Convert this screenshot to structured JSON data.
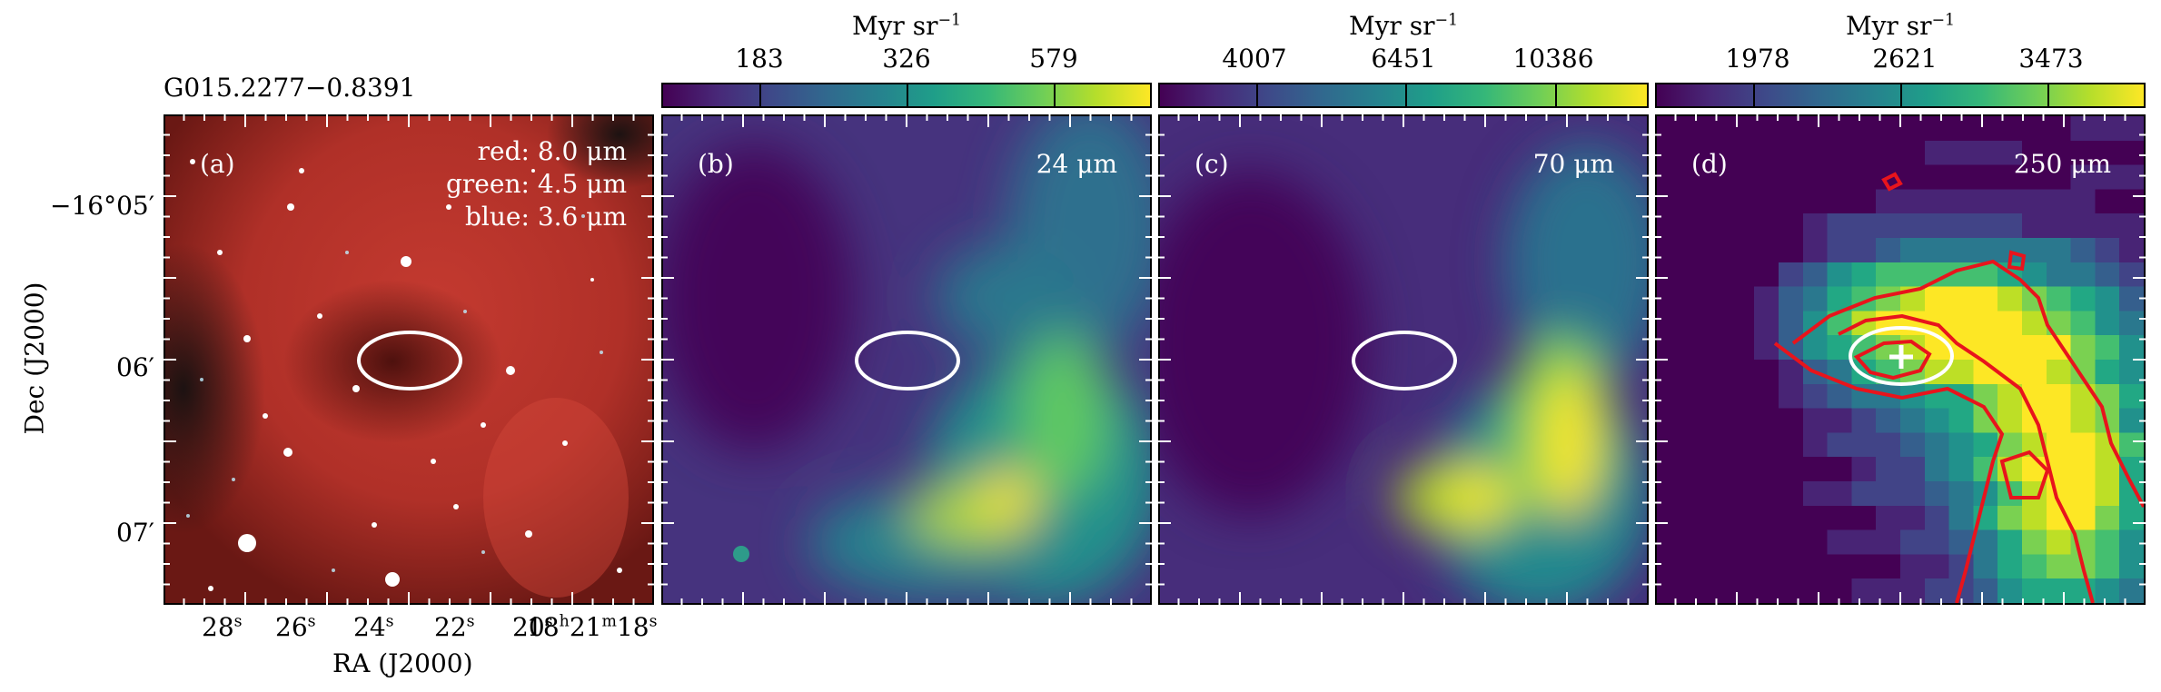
{
  "source_name": "G015.2277−0.8391",
  "panels": [
    {
      "letter": "(a)",
      "bands": [
        "red: 8.0 μm",
        "green: 4.5 μm",
        "blue: 3.6 μm"
      ]
    },
    {
      "letter": "(b)",
      "band": "24 μm",
      "colorbar": {
        "unit": "Myr sr",
        "unit_exp": "−1",
        "ticks": [
          "183",
          "326",
          "579"
        ]
      }
    },
    {
      "letter": "(c)",
      "band": "70 μm",
      "colorbar": {
        "unit": "Myr sr",
        "unit_exp": "−1",
        "ticks": [
          "4007",
          "6451",
          "10386"
        ]
      }
    },
    {
      "letter": "(d)",
      "band": "250 μm",
      "colorbar": {
        "unit": "Myr sr",
        "unit_exp": "−1",
        "ticks": [
          "1978",
          "2621",
          "3473"
        ]
      }
    }
  ],
  "axes": {
    "ylabel": "Dec (J2000)",
    "xlabel": "RA (J2000)",
    "yticks": [
      "−16°05′",
      "06′",
      "07′"
    ],
    "xticks": [
      {
        "v": "28",
        "u": "s"
      },
      {
        "v": "26",
        "u": "s"
      },
      {
        "v": "24",
        "u": "s"
      },
      {
        "v": "22",
        "u": "s"
      },
      {
        "v": "20",
        "u": "s"
      },
      {
        "v": "18",
        "u": "h"
      },
      {
        "v": "21",
        "u": "m"
      },
      {
        "v": "18",
        "u": "s"
      }
    ]
  },
  "colors": {
    "ellipse": "#ffffff",
    "contour": "#e8141c",
    "viridis_low": "#440154",
    "viridis_high": "#fde725",
    "irac_red": "#c8352e"
  }
}
